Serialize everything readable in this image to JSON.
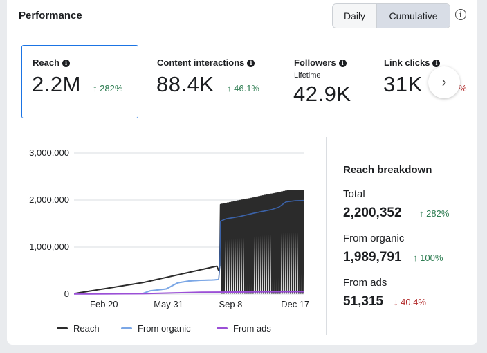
{
  "header": {
    "title": "Performance",
    "toggle": {
      "daily": "Daily",
      "cumulative": "Cumulative"
    },
    "info_icon": "info-icon"
  },
  "metrics": [
    {
      "label": "Reach",
      "value": "2.2M",
      "delta": "282%",
      "direction": "up",
      "selected": true
    },
    {
      "label": "Content interactions",
      "value": "88.4K",
      "delta": "46.1%",
      "direction": "up"
    },
    {
      "label": "Followers",
      "sub": "Lifetime",
      "value": "42.9K"
    },
    {
      "label": "Link clicks",
      "value": "31K",
      "delta": "%",
      "direction": "down"
    }
  ],
  "breakdown": {
    "title": "Reach breakdown",
    "total": {
      "label": "Total",
      "value": "2,200,352",
      "delta": "282%",
      "direction": "up"
    },
    "organic": {
      "label": "From organic",
      "value": "1,989,791",
      "delta": "100%",
      "direction": "up"
    },
    "ads": {
      "label": "From ads",
      "value": "51,315",
      "delta": "40.4%",
      "direction": "down"
    }
  },
  "colors": {
    "accent": "#1b74e4",
    "reach": "#2b2b2b",
    "organic": "#7ba7e6",
    "organic_dark": "#3b62a8",
    "ads": "#9b4fd6",
    "up": "#2e7d52",
    "down": "#b22a2a"
  },
  "chart_data": {
    "type": "line",
    "ylim": [
      0,
      3000000
    ],
    "yticks": [
      {
        "value": 0,
        "label": "0"
      },
      {
        "value": 1000000,
        "label": "1,000,000"
      },
      {
        "value": 2000000,
        "label": "2,000,000"
      },
      {
        "value": 3000000,
        "label": "3,000,000"
      }
    ],
    "xlim": [
      0,
      100
    ],
    "xticks": [
      {
        "value": 13,
        "label": "Feb 20"
      },
      {
        "value": 41,
        "label": "May 31"
      },
      {
        "value": 68,
        "label": "Sep 8"
      },
      {
        "value": 96,
        "label": "Dec 17"
      }
    ],
    "grid": true,
    "legend_position": "bottom",
    "series": [
      {
        "name": "Reach",
        "color": "#2b2b2b"
      },
      {
        "name": "From organic",
        "color": "#7ba7e6"
      },
      {
        "name": "From ads",
        "color": "#9b4fd6"
      }
    ]
  }
}
